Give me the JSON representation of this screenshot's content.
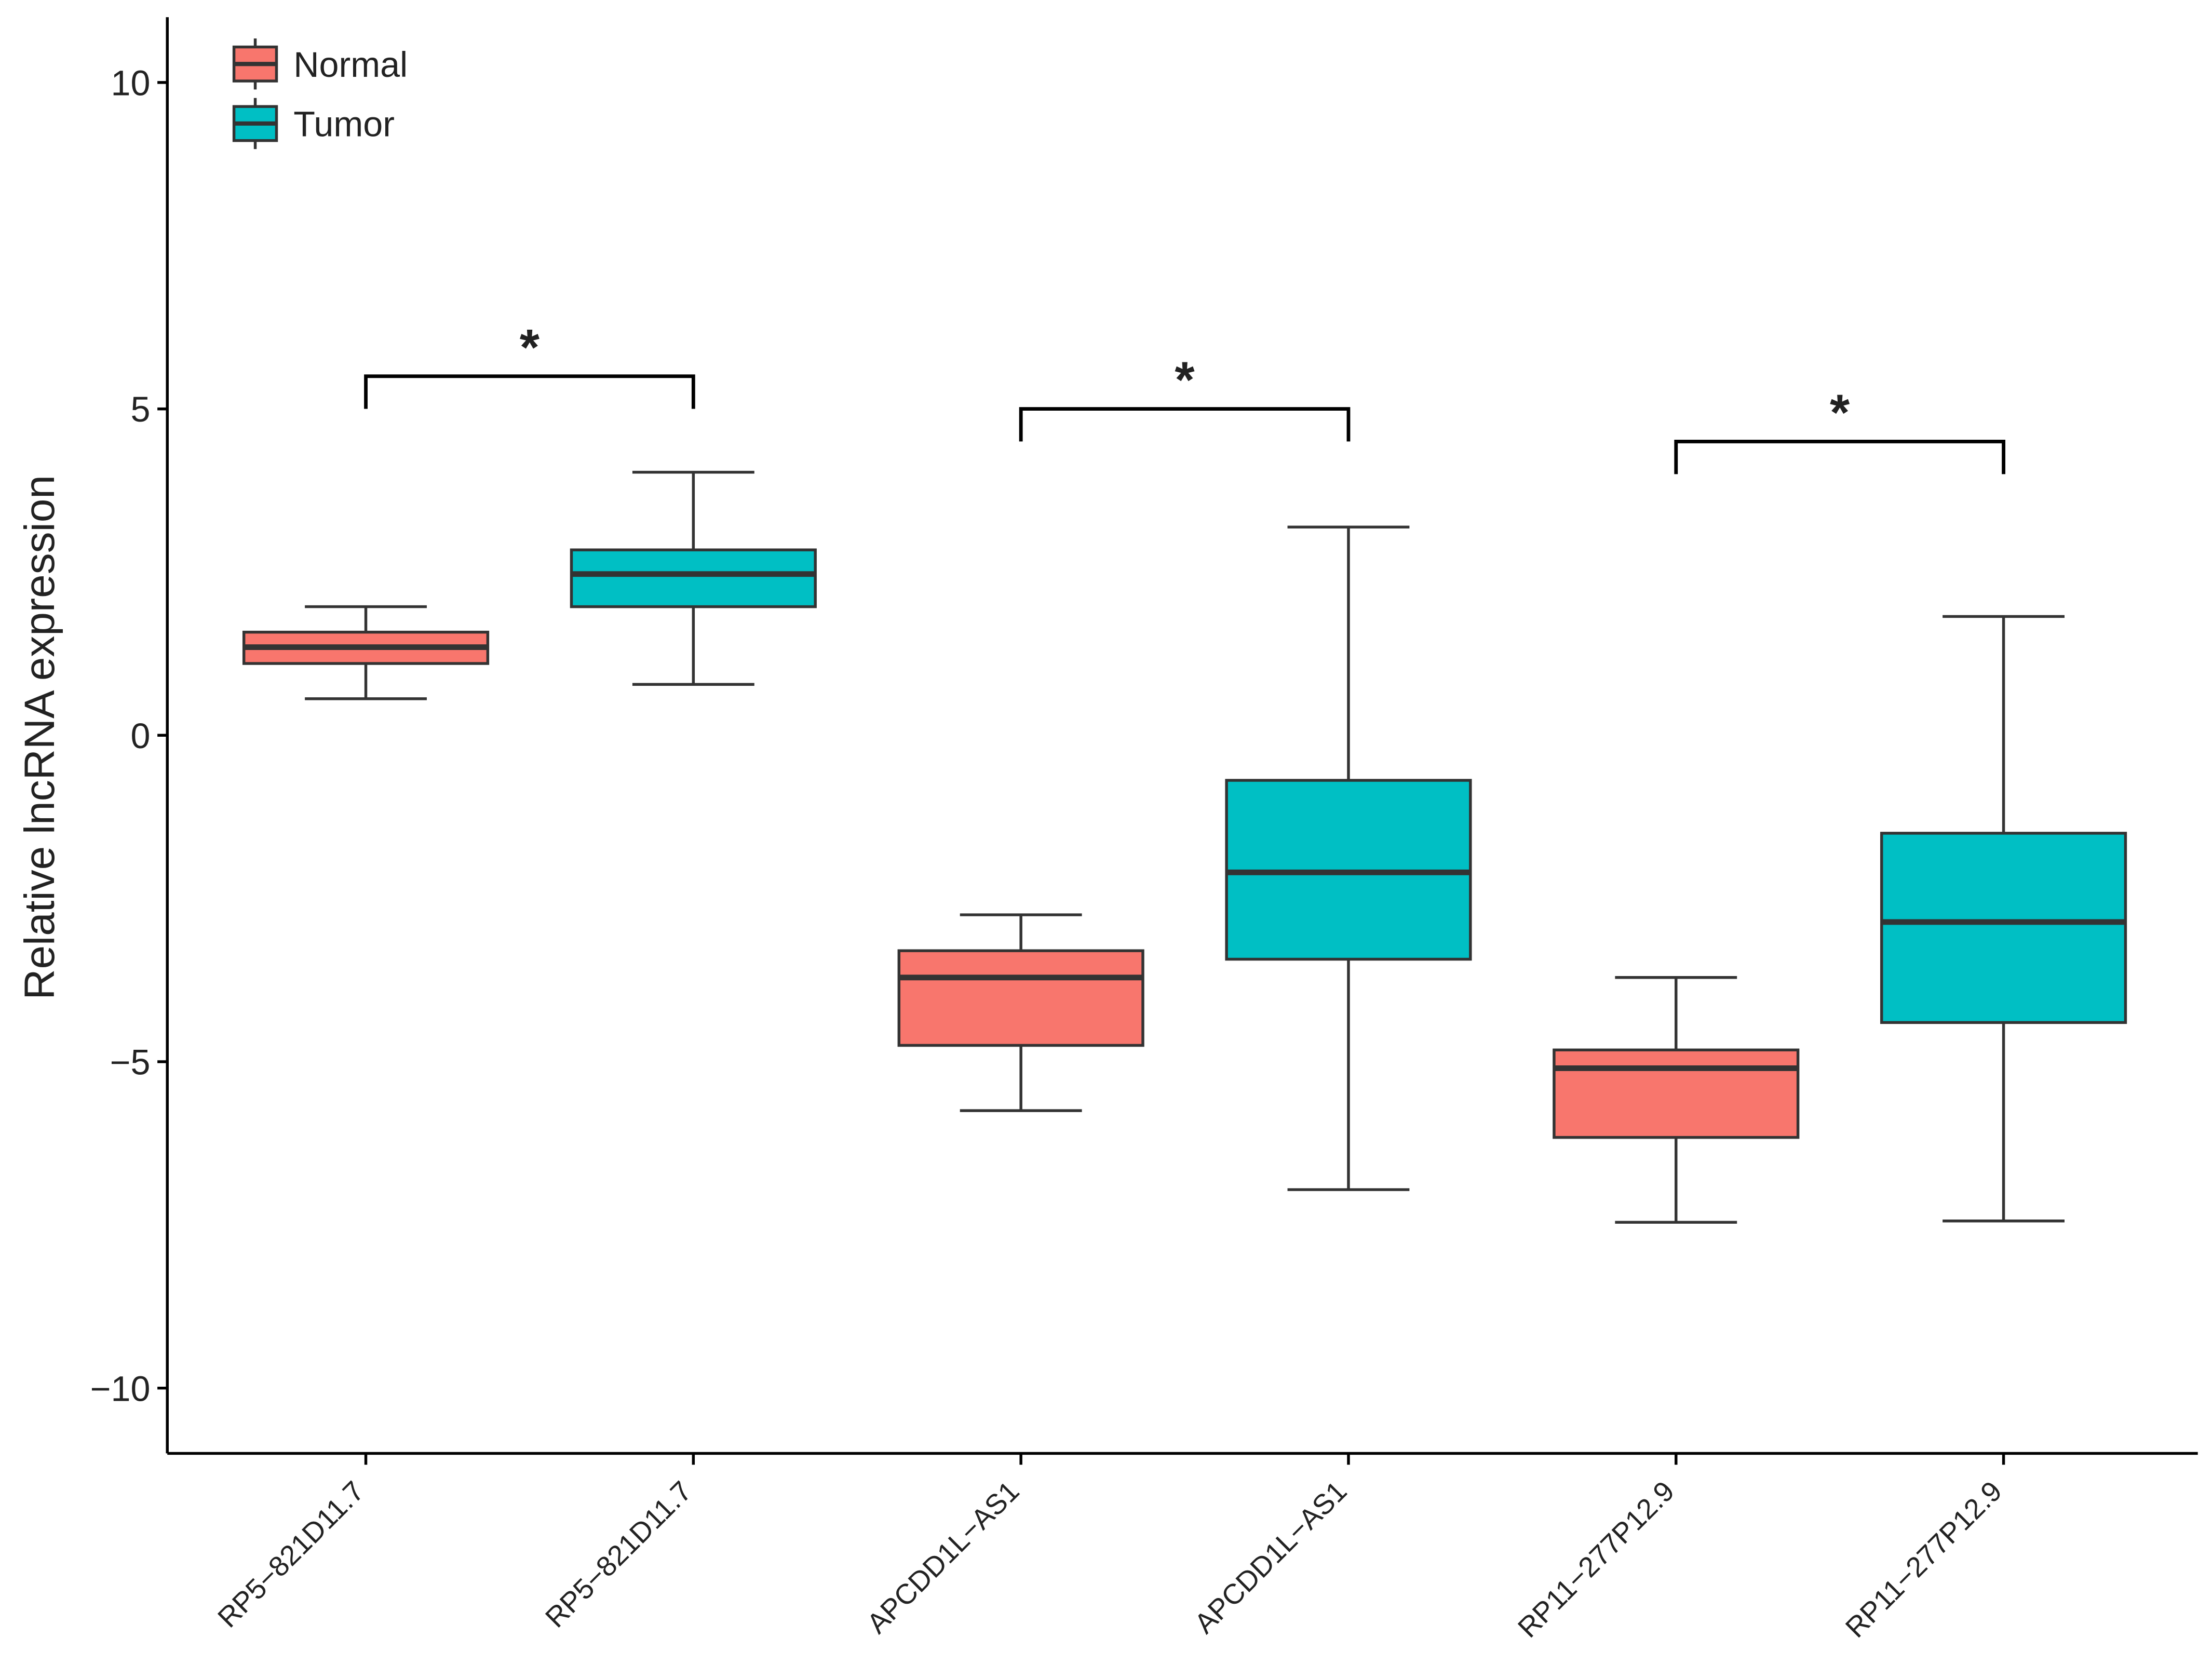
{
  "chart_data": {
    "type": "box",
    "y_label": "Relative lncRNA expression",
    "categories": [
      "RP5−821D11.7",
      "RP5−821D11.7",
      "APCDD1L−AS1",
      "APCDD1L−AS1",
      "RP11−277P12.9",
      "RP11−277P12.9"
    ],
    "series": [
      {
        "name": "Normal",
        "color": "#F8766D",
        "low": [
          0.56,
          null,
          -5.75,
          null,
          -7.46,
          null
        ],
        "q1": [
          1.1,
          null,
          -4.75,
          null,
          -6.16,
          null
        ],
        "median": [
          1.35,
          null,
          -3.71,
          null,
          -5.1,
          null
        ],
        "q3": [
          1.58,
          null,
          -3.3,
          null,
          -4.82,
          null
        ],
        "high": [
          1.97,
          null,
          -2.75,
          null,
          -3.71,
          null
        ]
      },
      {
        "name": "Tumor",
        "color": "#00BFC4",
        "low": [
          null,
          0.78,
          null,
          -6.96,
          null,
          -7.44
        ],
        "q1": [
          null,
          1.97,
          null,
          -3.43,
          null,
          -4.4
        ],
        "median": [
          null,
          2.47,
          null,
          -2.1,
          null,
          -2.86
        ],
        "q3": [
          null,
          2.84,
          null,
          -0.69,
          null,
          -1.5
        ],
        "high": [
          null,
          4.03,
          null,
          3.19,
          null,
          1.82
        ]
      }
    ],
    "annotations": [
      {
        "text": "*",
        "y": 5.5
      },
      {
        "text": "*",
        "y": 5.0
      },
      {
        "text": "*",
        "y": 4.5
      }
    ],
    "ylim": [
      -11,
      11
    ],
    "yticks": [
      {
        "value": -10,
        "label": "−10"
      },
      {
        "value": -5,
        "label": "−5"
      },
      0,
      5,
      10
    ],
    "legend": "top-left",
    "grid": false
  }
}
